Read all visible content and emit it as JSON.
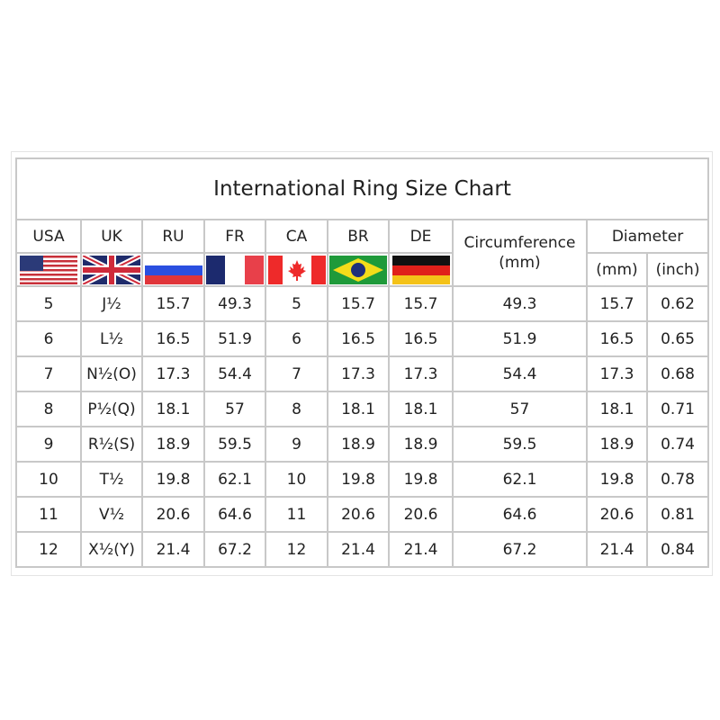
{
  "title": "International Ring Size Chart",
  "headers": {
    "countries": [
      "USA",
      "UK",
      "RU",
      "FR",
      "CA",
      "BR",
      "DE"
    ],
    "flag_icons": [
      "usa-flag-icon",
      "uk-flag-icon",
      "russia-flag-icon",
      "france-flag-icon",
      "canada-flag-icon",
      "brazil-flag-icon",
      "germany-flag-icon"
    ],
    "circumference": "Circumference",
    "circumference_unit": "(mm)",
    "diameter": "Diameter",
    "diameter_mm": "(mm)",
    "diameter_inch": "(inch)"
  },
  "rows": [
    [
      "5",
      "J½",
      "15.7",
      "49.3",
      "5",
      "15.7",
      "15.7",
      "49.3",
      "15.7",
      "0.62"
    ],
    [
      "6",
      "L½",
      "16.5",
      "51.9",
      "6",
      "16.5",
      "16.5",
      "51.9",
      "16.5",
      "0.65"
    ],
    [
      "7",
      "N½(O)",
      "17.3",
      "54.4",
      "7",
      "17.3",
      "17.3",
      "54.4",
      "17.3",
      "0.68"
    ],
    [
      "8",
      "P½(Q)",
      "18.1",
      "57",
      "8",
      "18.1",
      "18.1",
      "57",
      "18.1",
      "0.71"
    ],
    [
      "9",
      "R½(S)",
      "18.9",
      "59.5",
      "9",
      "18.9",
      "18.9",
      "59.5",
      "18.9",
      "0.74"
    ],
    [
      "10",
      "T½",
      "19.8",
      "62.1",
      "10",
      "19.8",
      "19.8",
      "62.1",
      "19.8",
      "0.78"
    ],
    [
      "11",
      "V½",
      "20.6",
      "64.6",
      "11",
      "20.6",
      "20.6",
      "64.6",
      "20.6",
      "0.81"
    ],
    [
      "12",
      "X½(Y)",
      "21.4",
      "67.2",
      "12",
      "21.4",
      "21.4",
      "67.2",
      "21.4",
      "0.84"
    ]
  ]
}
